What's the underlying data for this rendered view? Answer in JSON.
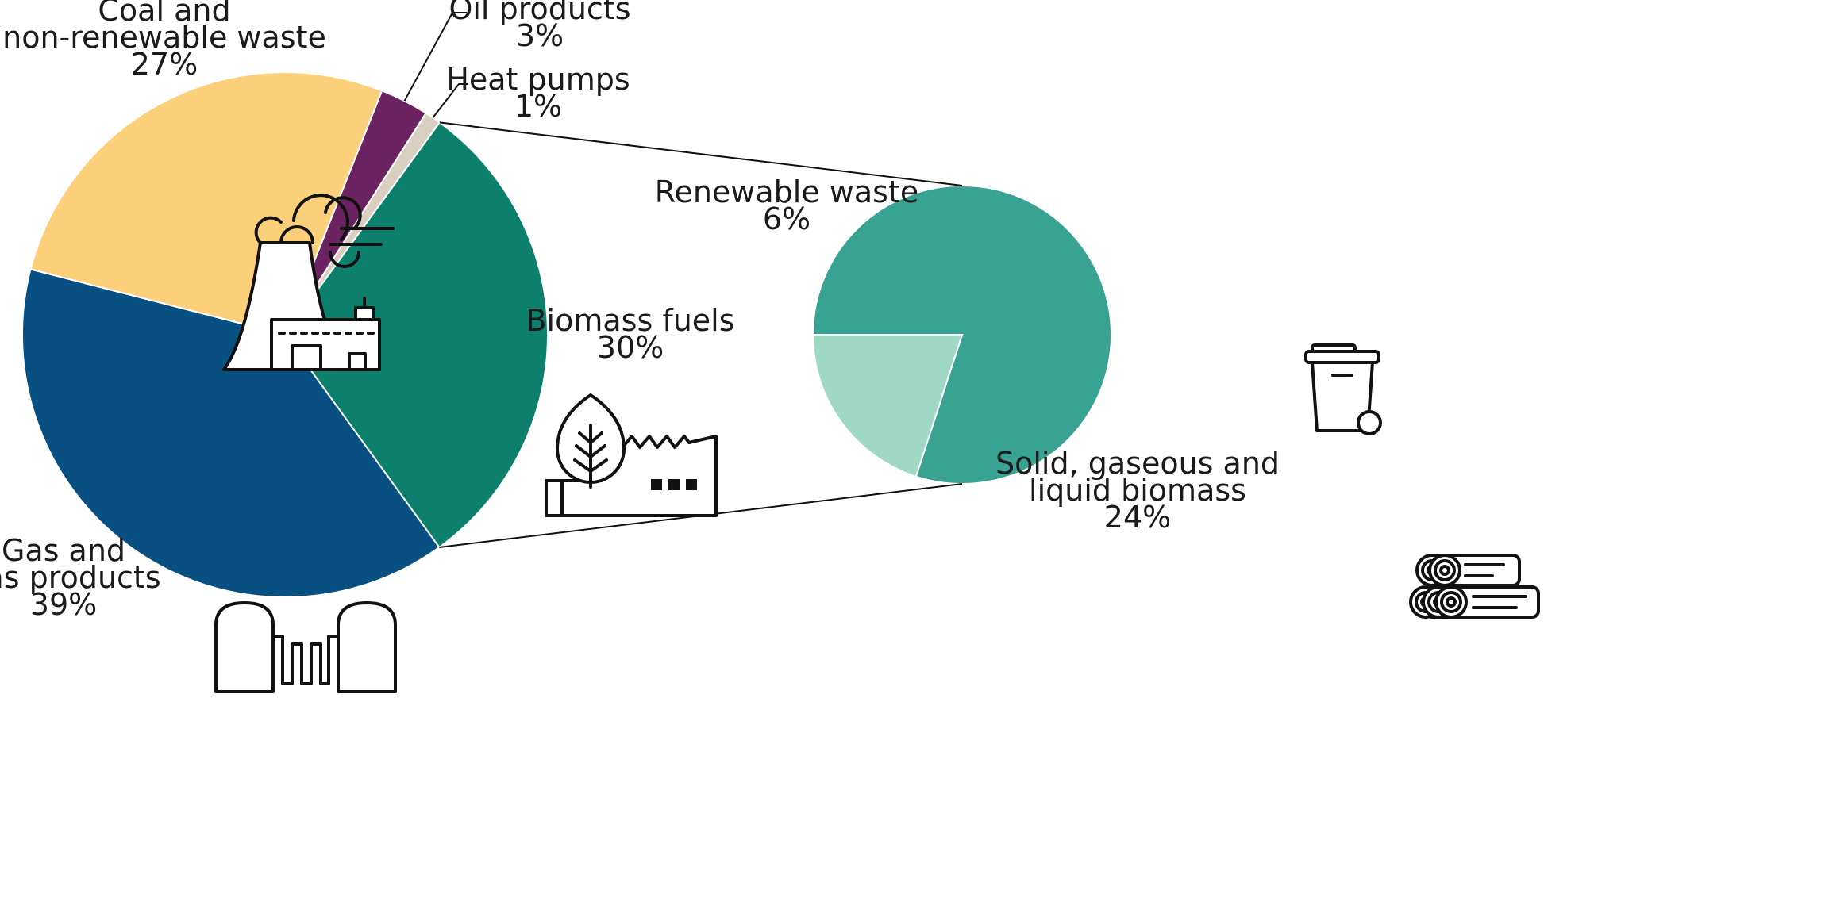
{
  "chart_data": [
    {
      "type": "pie",
      "slices": [
        {
          "label_lines": [
            "Oil products",
            "3%"
          ],
          "value": 3,
          "color": "#6a2260"
        },
        {
          "label_lines": [
            "Heat pumps",
            "1%"
          ],
          "value": 1,
          "color": "#d9cfc1"
        },
        {
          "label_lines": [
            "Biomass fuels",
            "30%"
          ],
          "value": 30,
          "color": "#0c7f6d",
          "icon": "biomass-factory-icon"
        },
        {
          "label_lines": [
            "Gas and",
            "gas products",
            "39%"
          ],
          "value": 39,
          "color": "#095082",
          "icon": "gas-tanks-icon"
        },
        {
          "label_lines": [
            "Coal and",
            "non-renewable waste",
            "27%"
          ],
          "value": 27,
          "color": "#fccf7b",
          "icon": "power-plant-icon"
        }
      ]
    },
    {
      "type": "pie",
      "breakdown_of": "Biomass fuels",
      "slices": [
        {
          "label_lines": [
            "Solid, gaseous and",
            "liquid biomass",
            "24%"
          ],
          "value": 24,
          "color": "#38a392",
          "icon": "logs-icon"
        },
        {
          "label_lines": [
            "Renewable waste",
            "6%"
          ],
          "value": 6,
          "color": "#a0d8c6",
          "icon": "waste-bin-icon"
        }
      ]
    }
  ]
}
